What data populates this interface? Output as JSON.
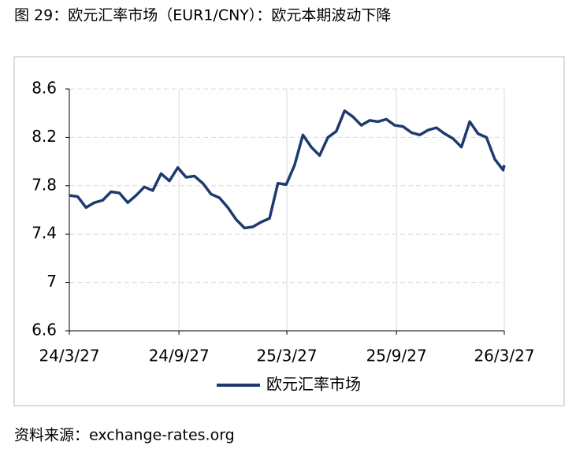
{
  "chart_data": {
    "type": "line",
    "title": "图 29：欧元汇率市场（EUR1/CNY）：欧元本期波动下降",
    "source": "资料来源：exchange-rates.org",
    "x": [
      "2024-03-27",
      "2024-04-10",
      "2024-04-24",
      "2024-05-08",
      "2024-05-22",
      "2024-06-05",
      "2024-06-19",
      "2024-07-03",
      "2024-07-17",
      "2024-07-31",
      "2024-08-14",
      "2024-08-28",
      "2024-09-11",
      "2024-09-25",
      "2024-10-09",
      "2024-10-23",
      "2024-11-06",
      "2024-11-20",
      "2024-12-04",
      "2024-12-18",
      "2025-01-01",
      "2025-01-15",
      "2025-01-29",
      "2025-02-12",
      "2025-02-26",
      "2025-03-12",
      "2025-03-26",
      "2025-04-09",
      "2025-04-23",
      "2025-05-07",
      "2025-05-21",
      "2025-06-04",
      "2025-06-18",
      "2025-07-02",
      "2025-07-16",
      "2025-07-30",
      "2025-08-13",
      "2025-08-27",
      "2025-09-10",
      "2025-09-24",
      "2025-10-08",
      "2025-10-22",
      "2025-11-05",
      "2025-11-19",
      "2025-12-03",
      "2025-12-17",
      "2025-12-31",
      "2026-01-14",
      "2026-01-28",
      "2026-02-11",
      "2026-02-25",
      "2026-03-11",
      "2026-03-25",
      "2026-03-27"
    ],
    "series": [
      {
        "name": "欧元汇率市场",
        "color": "#1f3a6e",
        "values": [
          7.72,
          7.71,
          7.62,
          7.66,
          7.68,
          7.75,
          7.74,
          7.66,
          7.72,
          7.79,
          7.76,
          7.9,
          7.84,
          7.95,
          7.87,
          7.88,
          7.82,
          7.73,
          7.7,
          7.62,
          7.52,
          7.45,
          7.46,
          7.5,
          7.53,
          7.82,
          7.81,
          7.97,
          8.22,
          8.12,
          8.05,
          8.2,
          8.25,
          8.42,
          8.37,
          8.3,
          8.34,
          8.33,
          8.35,
          8.3,
          8.29,
          8.24,
          8.22,
          8.26,
          8.28,
          8.23,
          8.19,
          8.12,
          8.33,
          8.23,
          8.2,
          8.02,
          7.93,
          7.97
        ]
      }
    ],
    "xlim": [
      "2024-03-27",
      "2026-03-27"
    ],
    "xticks": [
      {
        "value": "2024-03-27",
        "label": "24/3/27"
      },
      {
        "value": "2024-09-27",
        "label": "24/9/27"
      },
      {
        "value": "2025-03-27",
        "label": "25/3/27"
      },
      {
        "value": "2025-09-27",
        "label": "25/9/27"
      },
      {
        "value": "2026-03-27",
        "label": "26/3/27"
      }
    ],
    "ylim": [
      6.6,
      8.6
    ],
    "yticks": [
      6.6,
      7,
      7.4,
      7.8,
      8.2,
      8.6
    ],
    "grid": true
  }
}
